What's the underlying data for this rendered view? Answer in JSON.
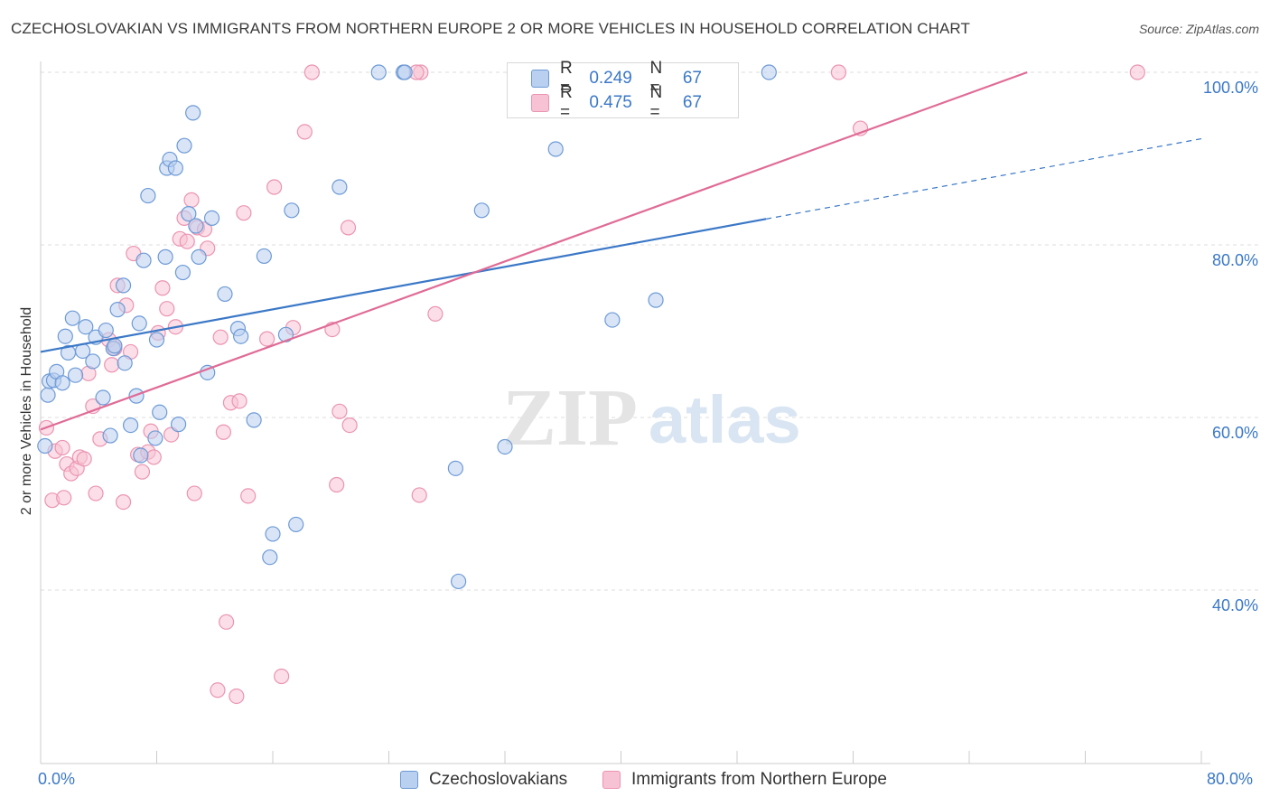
{
  "title": "CZECHOSLOVAKIAN VS IMMIGRANTS FROM NORTHERN EUROPE 2 OR MORE VEHICLES IN HOUSEHOLD CORRELATION CHART",
  "source": "Source: ZipAtlas.com",
  "colors": {
    "blue": "#3b78c7",
    "blue_fill": "#b9d0f0",
    "blue_stroke": "#6d9ad6",
    "pink": "#e06b96",
    "pink_fill": "#f7c2d3",
    "pink_stroke": "#eb94b1",
    "grid": "#dddddd",
    "tick_text": "#3b78c7"
  },
  "legend": {
    "rows": [
      {
        "label": "R =",
        "r": "0.249",
        "n_label": "N =",
        "n": "67",
        "color": "blue"
      },
      {
        "label": "R =",
        "r": "0.475",
        "n_label": "N =",
        "n": "67",
        "color": "pink"
      }
    ]
  },
  "bottom_legend": [
    "Czechoslovakians",
    "Immigrants from Northern Europe"
  ],
  "watermark": "ZIPatlas",
  "chart_data": {
    "type": "scatter",
    "xlabel": "",
    "ylabel": "2 or more Vehicles in Household",
    "xlim": [
      0,
      80
    ],
    "ylim": [
      20,
      100
    ],
    "x_tick_labels": [
      "0.0%",
      "80.0%"
    ],
    "y_tick_labels": [
      "40.0%",
      "60.0%",
      "80.0%",
      "100.0%"
    ],
    "y_ticks": [
      40,
      60,
      80,
      100
    ],
    "grid": true,
    "legend_position": "top-center",
    "series": [
      {
        "name": "Czechoslovakians",
        "color": "blue",
        "trend": {
          "x0": 0,
          "y0": 67.6,
          "x1": 50,
          "y1": 83.0,
          "dashed_to_x": 80,
          "dashed_to_y": 92.3
        },
        "points": [
          [
            0.3,
            56.7
          ],
          [
            0.5,
            62.6
          ],
          [
            0.6,
            64.2
          ],
          [
            0.9,
            64.3
          ],
          [
            1.1,
            65.3
          ],
          [
            1.5,
            64.0
          ],
          [
            1.7,
            69.4
          ],
          [
            1.9,
            67.5
          ],
          [
            2.2,
            71.5
          ],
          [
            2.4,
            64.9
          ],
          [
            2.9,
            67.7
          ],
          [
            3.1,
            70.5
          ],
          [
            3.6,
            66.5
          ],
          [
            3.8,
            69.3
          ],
          [
            4.3,
            62.3
          ],
          [
            4.5,
            70.1
          ],
          [
            4.8,
            57.9
          ],
          [
            5.0,
            68.0
          ],
          [
            5.1,
            68.3
          ],
          [
            5.3,
            72.5
          ],
          [
            5.7,
            75.3
          ],
          [
            5.8,
            66.3
          ],
          [
            6.2,
            59.1
          ],
          [
            6.6,
            62.5
          ],
          [
            6.8,
            70.9
          ],
          [
            6.9,
            55.6
          ],
          [
            7.1,
            78.2
          ],
          [
            7.4,
            85.7
          ],
          [
            7.9,
            57.6
          ],
          [
            8.0,
            69.0
          ],
          [
            8.2,
            60.6
          ],
          [
            8.6,
            78.6
          ],
          [
            8.7,
            88.9
          ],
          [
            8.9,
            89.9
          ],
          [
            9.3,
            88.9
          ],
          [
            9.5,
            59.2
          ],
          [
            9.8,
            76.8
          ],
          [
            9.9,
            91.5
          ],
          [
            10.2,
            83.6
          ],
          [
            10.5,
            95.3
          ],
          [
            10.7,
            82.2
          ],
          [
            10.9,
            78.6
          ],
          [
            11.5,
            65.2
          ],
          [
            11.8,
            83.1
          ],
          [
            12.7,
            74.3
          ],
          [
            13.6,
            70.3
          ],
          [
            13.8,
            69.4
          ],
          [
            14.7,
            59.7
          ],
          [
            15.4,
            78.7
          ],
          [
            16.0,
            46.5
          ],
          [
            15.8,
            43.8
          ],
          [
            16.9,
            69.6
          ],
          [
            17.3,
            84.0
          ],
          [
            17.6,
            47.6
          ],
          [
            20.6,
            86.7
          ],
          [
            23.3,
            100.0
          ],
          [
            25.0,
            100.0
          ],
          [
            28.6,
            54.1
          ],
          [
            28.8,
            41.0
          ],
          [
            30.4,
            84.0
          ],
          [
            32.0,
            56.6
          ],
          [
            35.5,
            91.1
          ],
          [
            39.4,
            71.3
          ],
          [
            42.4,
            73.6
          ],
          [
            50.2,
            100.0
          ],
          [
            25.1,
            100.0
          ],
          [
            35.6,
            100.0
          ]
        ]
      },
      {
        "name": "Immigrants from Northern Europe",
        "color": "pink",
        "trend": {
          "x0": 0,
          "y0": 58.6,
          "x1": 68.0,
          "y1": 100.0
        },
        "points": [
          [
            0.4,
            58.8
          ],
          [
            0.8,
            50.4
          ],
          [
            1.0,
            56.1
          ],
          [
            1.5,
            56.5
          ],
          [
            1.6,
            50.7
          ],
          [
            1.8,
            54.6
          ],
          [
            2.1,
            53.5
          ],
          [
            2.5,
            54.1
          ],
          [
            2.7,
            55.4
          ],
          [
            3.0,
            55.2
          ],
          [
            3.3,
            65.1
          ],
          [
            3.6,
            61.3
          ],
          [
            3.8,
            51.2
          ],
          [
            4.1,
            57.5
          ],
          [
            4.7,
            69.0
          ],
          [
            4.9,
            66.1
          ],
          [
            5.1,
            68.0
          ],
          [
            5.3,
            75.3
          ],
          [
            5.7,
            50.2
          ],
          [
            5.9,
            73.0
          ],
          [
            6.2,
            67.6
          ],
          [
            6.4,
            79.0
          ],
          [
            6.7,
            55.7
          ],
          [
            7.0,
            53.7
          ],
          [
            7.4,
            56.0
          ],
          [
            7.6,
            58.4
          ],
          [
            7.8,
            55.4
          ],
          [
            8.1,
            69.8
          ],
          [
            8.4,
            75.0
          ],
          [
            8.7,
            72.6
          ],
          [
            9.0,
            58.0
          ],
          [
            9.3,
            70.5
          ],
          [
            9.6,
            80.7
          ],
          [
            9.9,
            83.1
          ],
          [
            10.1,
            80.4
          ],
          [
            10.4,
            85.2
          ],
          [
            10.6,
            51.2
          ],
          [
            10.8,
            82.0
          ],
          [
            11.3,
            81.8
          ],
          [
            11.5,
            79.6
          ],
          [
            12.2,
            28.4
          ],
          [
            12.4,
            69.3
          ],
          [
            12.6,
            58.3
          ],
          [
            12.8,
            36.3
          ],
          [
            13.1,
            61.7
          ],
          [
            13.5,
            27.7
          ],
          [
            13.7,
            61.9
          ],
          [
            14.0,
            83.7
          ],
          [
            14.3,
            50.9
          ],
          [
            15.6,
            69.1
          ],
          [
            16.1,
            86.7
          ],
          [
            17.4,
            70.4
          ],
          [
            16.6,
            30.0
          ],
          [
            18.2,
            93.1
          ],
          [
            18.7,
            100.0
          ],
          [
            20.1,
            70.2
          ],
          [
            20.4,
            52.2
          ],
          [
            20.6,
            60.7
          ],
          [
            21.2,
            82.0
          ],
          [
            21.3,
            59.1
          ],
          [
            26.1,
            51.0
          ],
          [
            26.2,
            100.0
          ],
          [
            27.2,
            72.0
          ],
          [
            55.0,
            100.0
          ],
          [
            56.5,
            93.5
          ],
          [
            75.6,
            100.0
          ],
          [
            25.9,
            100.0
          ]
        ]
      }
    ]
  }
}
